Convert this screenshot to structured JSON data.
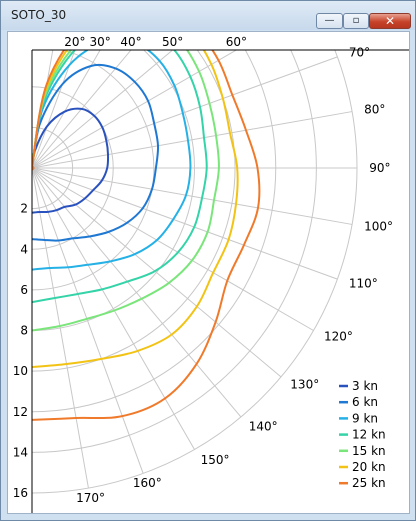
{
  "window": {
    "title": "SOTO_30",
    "minimize_glyph": "—",
    "maximize_glyph": "▫",
    "close_glyph": "✕"
  },
  "chart_data": {
    "type": "line",
    "polar": true,
    "angle_unit": "deg",
    "angle_range": [
      0,
      180
    ],
    "radius_range": [
      0,
      16
    ],
    "grid": true,
    "legend_position": "bottom-right",
    "angle_ticks": [
      {
        "angle": 20,
        "label": "20°"
      },
      {
        "angle": 30,
        "label": "30°"
      },
      {
        "angle": 40,
        "label": "40°"
      },
      {
        "angle": 50,
        "label": "50°"
      },
      {
        "angle": 60,
        "label": "60°"
      },
      {
        "angle": 70,
        "label": "70°"
      },
      {
        "angle": 80,
        "label": "80°"
      },
      {
        "angle": 90,
        "label": "90°"
      },
      {
        "angle": 100,
        "label": "100°"
      },
      {
        "angle": 110,
        "label": "110°"
      },
      {
        "angle": 120,
        "label": "120°"
      },
      {
        "angle": 130,
        "label": "130°"
      },
      {
        "angle": 140,
        "label": "140°"
      },
      {
        "angle": 150,
        "label": "150°"
      },
      {
        "angle": 160,
        "label": "160°"
      },
      {
        "angle": 170,
        "label": "170°"
      }
    ],
    "radius_ticks": [
      {
        "value": 2,
        "label": "2"
      },
      {
        "value": 4,
        "label": "4"
      },
      {
        "value": 6,
        "label": "6"
      },
      {
        "value": 8,
        "label": "8"
      },
      {
        "value": 10,
        "label": "10"
      },
      {
        "value": 12,
        "label": "12"
      },
      {
        "value": 14,
        "label": "14"
      },
      {
        "value": 16,
        "label": "16"
      }
    ],
    "angles": [
      0,
      10,
      20,
      30,
      40,
      50,
      60,
      70,
      80,
      90,
      100,
      110,
      120,
      130,
      140,
      150,
      160,
      170,
      180
    ],
    "series": [
      {
        "name": "3 kn",
        "color": "#2a52be",
        "values": [
          0.0,
          0.9,
          2.2,
          3.2,
          3.8,
          4.0,
          4.0,
          3.9,
          3.8,
          3.7,
          3.5,
          3.2,
          3.0,
          2.8,
          2.5,
          2.4,
          2.3,
          2.2,
          2.2
        ]
      },
      {
        "name": "6 kn",
        "color": "#1f78d2",
        "values": [
          0.0,
          2.2,
          4.4,
          5.8,
          6.4,
          6.6,
          6.6,
          6.4,
          6.3,
          6.1,
          6.0,
          5.8,
          5.4,
          4.9,
          4.4,
          4.0,
          3.8,
          3.6,
          3.5
        ]
      },
      {
        "name": "9 kn",
        "color": "#25b1e6",
        "values": [
          0.0,
          2.9,
          5.4,
          7.2,
          8.0,
          8.2,
          8.1,
          7.9,
          7.8,
          7.8,
          7.7,
          7.4,
          7.1,
          6.6,
          6.0,
          5.5,
          5.2,
          5.0,
          5.0
        ]
      },
      {
        "name": "12 kn",
        "color": "#34d3a8",
        "values": [
          0.0,
          3.3,
          6.2,
          8.1,
          8.9,
          9.1,
          9.0,
          8.8,
          8.6,
          8.6,
          8.5,
          8.5,
          8.3,
          7.9,
          7.3,
          6.9,
          6.6,
          6.5,
          6.6
        ]
      },
      {
        "name": "15 kn",
        "color": "#7ae57a",
        "values": [
          0.0,
          3.6,
          6.6,
          8.6,
          9.4,
          9.6,
          9.5,
          9.3,
          9.2,
          9.2,
          9.1,
          9.2,
          9.1,
          8.8,
          8.4,
          8.1,
          7.9,
          7.9,
          8.0
        ]
      },
      {
        "name": "20 kn",
        "color": "#f2c315",
        "values": [
          0.0,
          3.9,
          7.1,
          9.2,
          10.1,
          10.3,
          10.2,
          10.0,
          9.9,
          10.1,
          10.2,
          10.3,
          10.3,
          10.6,
          10.7,
          10.4,
          10.0,
          9.8,
          9.8
        ]
      },
      {
        "name": "25 kn",
        "color": "#f07a2b",
        "values": [
          0.0,
          4.2,
          7.5,
          9.6,
          10.5,
          10.6,
          10.6,
          10.5,
          10.7,
          11.1,
          11.3,
          11.1,
          11.1,
          11.8,
          12.6,
          13.1,
          13.0,
          12.5,
          12.4
        ]
      }
    ]
  }
}
